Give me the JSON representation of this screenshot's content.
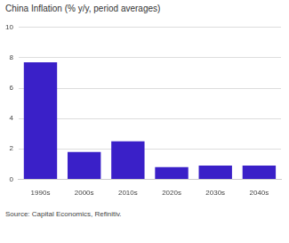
{
  "chart_data": {
    "type": "bar",
    "title": "China Inflation (% y/y, period averages)",
    "categories": [
      "1990s",
      "2000s",
      "2010s",
      "2020s",
      "2030s",
      "2040s"
    ],
    "values": [
      7.7,
      1.8,
      2.5,
      0.8,
      0.9,
      0.9
    ],
    "color": "#3a20c8",
    "ylim": [
      0,
      10
    ],
    "yticks": [
      0,
      2,
      4,
      6,
      8,
      10
    ],
    "grid": true,
    "annotations": [
      "Source: Capital Economics, Refinitiv."
    ]
  }
}
